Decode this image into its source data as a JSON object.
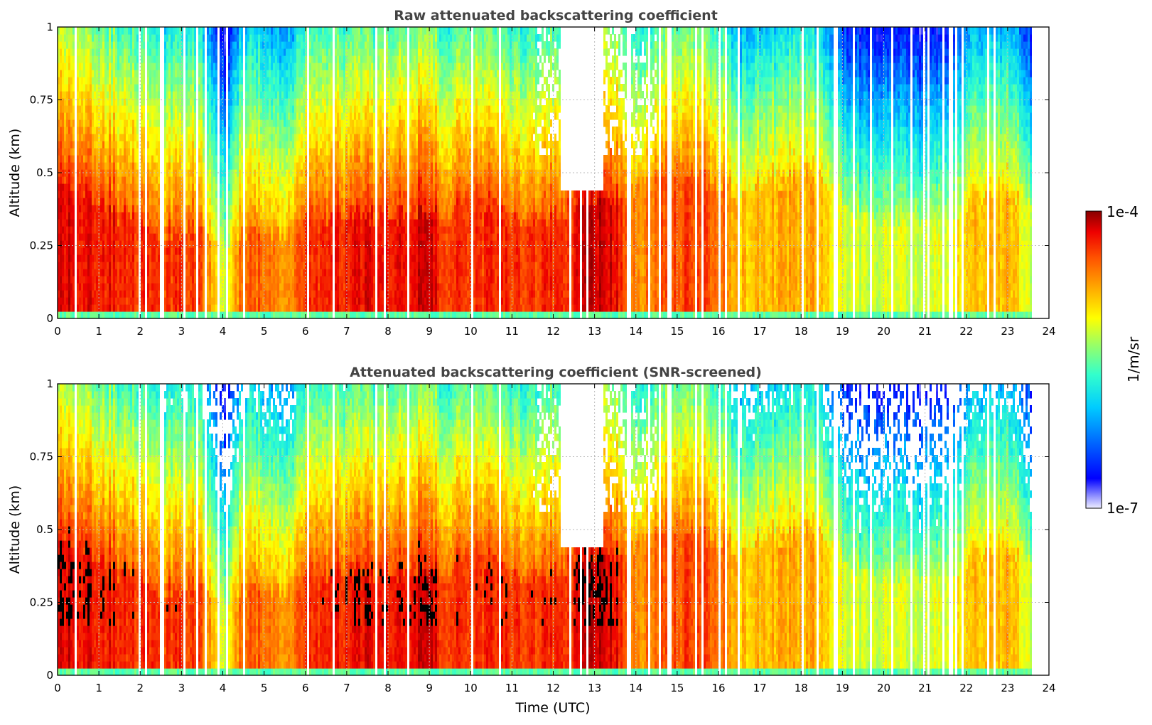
{
  "chart_data": [
    {
      "type": "heatmap",
      "title": "Raw attenuated backscattering coefficient",
      "xlabel": "",
      "ylabel": "Altitude (km)",
      "xlim": [
        0,
        24
      ],
      "ylim": [
        0,
        1
      ],
      "xticks": [
        "0",
        "1",
        "2",
        "3",
        "4",
        "5",
        "6",
        "7",
        "8",
        "9",
        "10",
        "11",
        "12",
        "13",
        "14",
        "15",
        "16",
        "17",
        "18",
        "19",
        "20",
        "21",
        "22",
        "23",
        "24"
      ],
      "yticks": [
        "0",
        "0.25",
        "0.5",
        "0.75",
        "1"
      ],
      "grid": true,
      "data_end_hour": 23.55,
      "profile": {
        "hours": [
          0,
          0.5,
          1,
          1.5,
          2,
          2.5,
          3,
          3.5,
          4,
          4.5,
          5,
          5.5,
          6,
          6.5,
          7,
          7.5,
          8,
          8.5,
          9,
          9.5,
          10,
          10.5,
          11,
          11.5,
          12,
          12.5,
          13,
          13.5,
          14,
          14.5,
          15,
          15.5,
          16,
          16.5,
          17,
          17.5,
          18,
          18.5,
          19,
          19.5,
          20,
          20.5,
          21,
          21.5,
          22,
          22.5,
          23,
          23.5
        ],
        "low_level": [
          0.92,
          0.92,
          0.9,
          0.88,
          0.86,
          0.84,
          0.86,
          0.82,
          0.6,
          0.82,
          0.8,
          0.72,
          0.86,
          0.86,
          0.88,
          0.9,
          0.9,
          0.92,
          0.92,
          0.84,
          0.86,
          0.86,
          0.86,
          0.86,
          0.86,
          0.88,
          0.96,
          0.9,
          0.75,
          0.8,
          0.82,
          0.84,
          0.8,
          0.7,
          0.7,
          0.72,
          0.72,
          0.72,
          0.6,
          0.58,
          0.6,
          0.6,
          0.6,
          0.6,
          0.7,
          0.72,
          0.72,
          0.6
        ],
        "layer_top_km": [
          0.45,
          0.45,
          0.4,
          0.35,
          0.35,
          0.3,
          0.3,
          0.32,
          0.25,
          0.3,
          0.3,
          0.3,
          0.35,
          0.35,
          0.35,
          0.35,
          0.35,
          0.35,
          0.35,
          0.35,
          0.45,
          0.4,
          0.35,
          0.35,
          0.35,
          0.4,
          0.42,
          0.42,
          0.45,
          0.5,
          0.52,
          0.5,
          0.45,
          0.45,
          0.48,
          0.48,
          0.5,
          0.5,
          0.4,
          0.35,
          0.35,
          0.35,
          0.35,
          0.35,
          0.4,
          0.45,
          0.45,
          0.4
        ]
      }
    },
    {
      "type": "heatmap",
      "title": "Attenuated backscattering coefficient (SNR-screened)",
      "xlabel": "Time (UTC)",
      "ylabel": "Altitude (km)",
      "xlim": [
        0,
        24
      ],
      "ylim": [
        0,
        1
      ],
      "xticks": [
        "0",
        "1",
        "2",
        "3",
        "4",
        "5",
        "6",
        "7",
        "8",
        "9",
        "10",
        "11",
        "12",
        "13",
        "14",
        "15",
        "16",
        "17",
        "18",
        "19",
        "20",
        "21",
        "22",
        "23",
        "24"
      ],
      "yticks": [
        "0",
        "0.25",
        "0.5",
        "0.75",
        "1"
      ],
      "grid": true,
      "data_end_hour": 23.55,
      "screened": true
    }
  ],
  "colorbar": {
    "label": "1/m/sr",
    "max_label": "1e-4",
    "min_label": "1e-7",
    "colormap": [
      "#eeeeff",
      "#aaaaff",
      "#0000ff",
      "#0066ff",
      "#00ccff",
      "#33ffcc",
      "#99ff66",
      "#ffff00",
      "#ffaa00",
      "#ff5500",
      "#ee0000",
      "#880000"
    ]
  }
}
